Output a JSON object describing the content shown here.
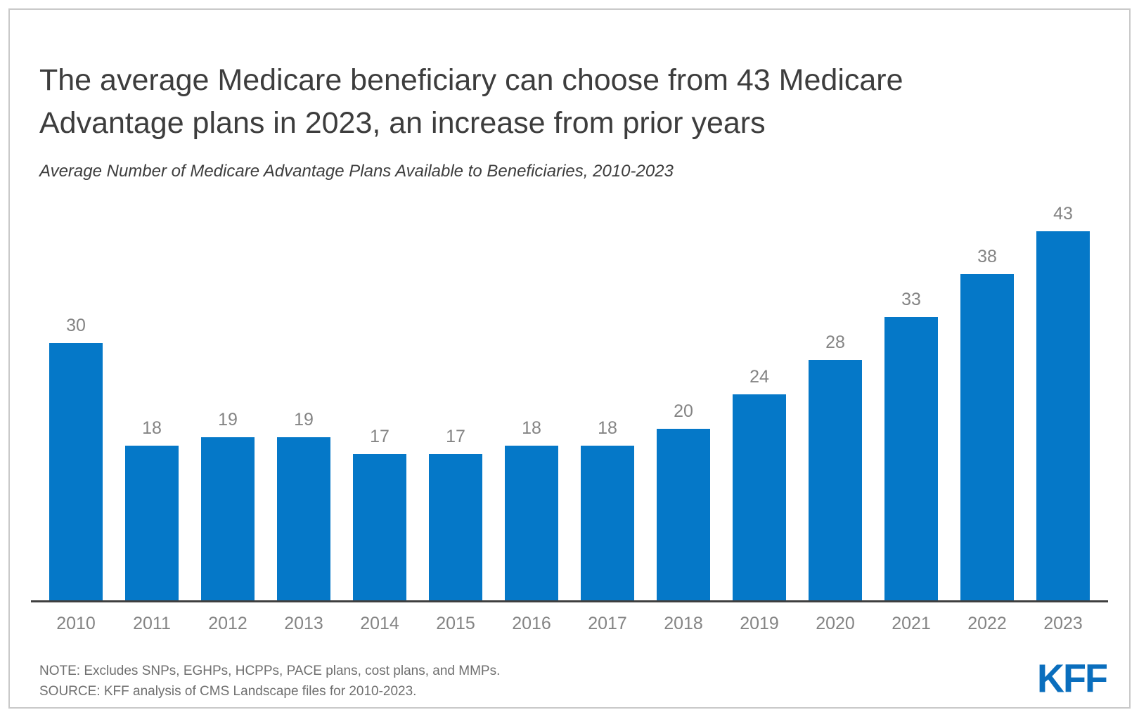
{
  "header": {
    "title": "The average Medicare beneficiary can choose from 43 Medicare Advantage plans in 2023, an increase from prior years",
    "subtitle": "Average Number of Medicare Advantage Plans Available to Beneficiaries, 2010-2023"
  },
  "chart_data": {
    "type": "bar",
    "categories": [
      "2010",
      "2011",
      "2012",
      "2013",
      "2014",
      "2015",
      "2016",
      "2017",
      "2018",
      "2019",
      "2020",
      "2021",
      "2022",
      "2023"
    ],
    "values": [
      30,
      18,
      19,
      19,
      17,
      17,
      18,
      18,
      20,
      24,
      28,
      33,
      38,
      43
    ],
    "title": "The average Medicare beneficiary can choose from 43 Medicare Advantage plans in 2023, an increase from prior years",
    "subtitle": "Average Number of Medicare Advantage Plans Available to Beneficiaries, 2010-2023",
    "xlabel": "",
    "ylabel": "",
    "ylim": [
      0,
      43
    ],
    "grid": false,
    "legend": false,
    "value_labels_shown": true
  },
  "footer": {
    "note": "NOTE: Excludes SNPs, EGHPs, HCPPs, PACE plans, cost plans, and MMPs.",
    "source": "SOURCE: KFF analysis of CMS Landscape files for 2010-2023.",
    "logo_text": "KFF"
  },
  "colors": {
    "bar": "#0578C8",
    "axis_line": "#3f3f3f",
    "value_label": "#848484",
    "tick_label": "#848484",
    "title_text": "#3d3d3d",
    "note_text": "#6f6f6f",
    "logo_blue": "#0A6EBD",
    "frame_border": "#c9c9c9"
  }
}
